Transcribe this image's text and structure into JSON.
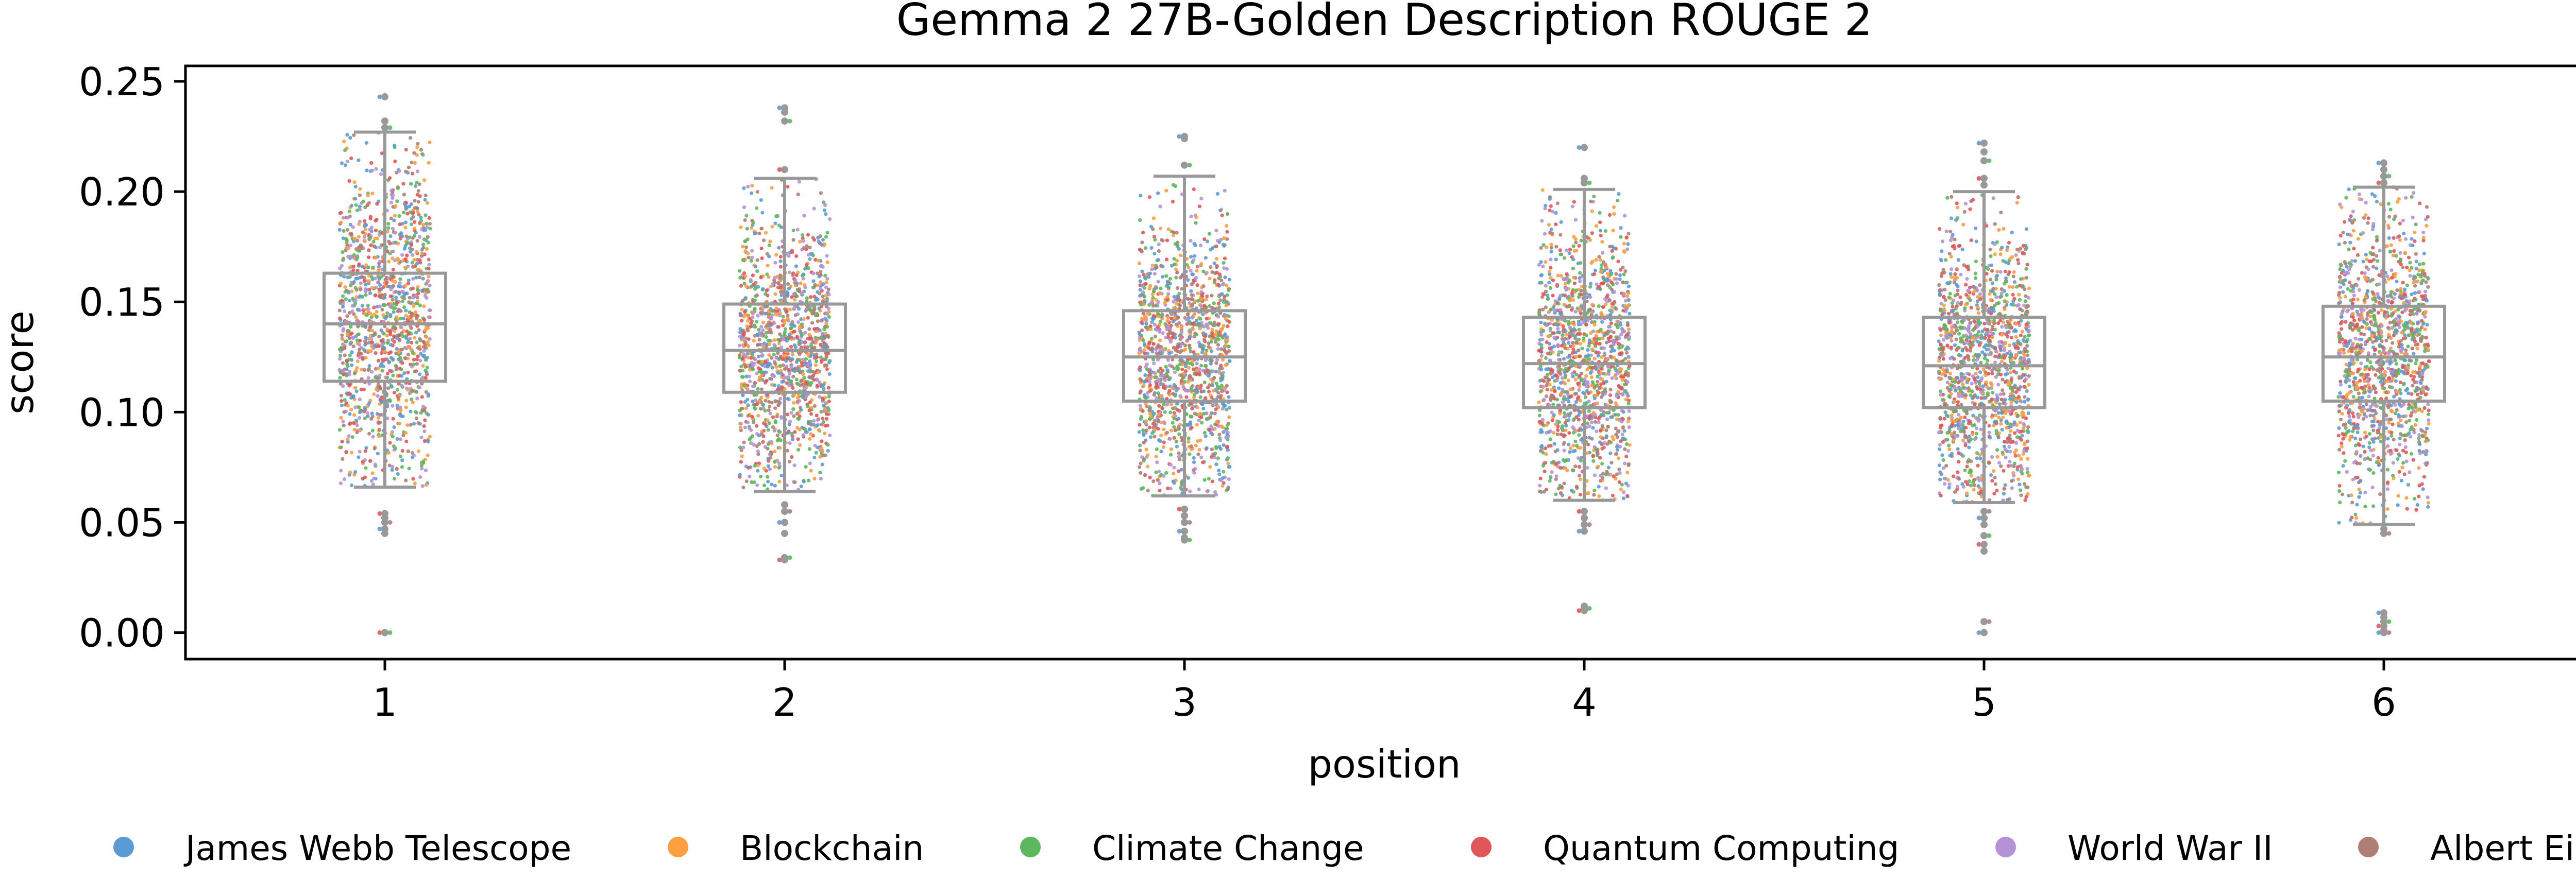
{
  "chart_data": {
    "type": "box",
    "title": "Gemma 2 27B-Golden Description ROUGE 2",
    "xlabel": "position",
    "ylabel": "score",
    "ylim": [
      -0.012,
      0.257
    ],
    "yticks": [
      {
        "value": 0.0,
        "label": "0.00"
      },
      {
        "value": 0.05,
        "label": "0.05"
      },
      {
        "value": 0.1,
        "label": "0.10"
      },
      {
        "value": 0.15,
        "label": "0.15"
      },
      {
        "value": 0.2,
        "label": "0.20"
      },
      {
        "value": 0.25,
        "label": "0.25"
      }
    ],
    "categories": [
      "1",
      "2",
      "3",
      "4",
      "5",
      "6"
    ],
    "grid": false,
    "legend_position": "bottom",
    "box_color": "#999999",
    "boxes": [
      {
        "position": "1",
        "whisker_low": 0.066,
        "q1": 0.114,
        "median": 0.14,
        "q3": 0.163,
        "whisker_high": 0.227,
        "outliers": [
          0.243,
          0.232,
          0.229,
          0.054,
          0.052,
          0.05,
          0.047,
          0.045,
          0.0,
          0.0
        ]
      },
      {
        "position": "2",
        "whisker_low": 0.064,
        "q1": 0.109,
        "median": 0.128,
        "q3": 0.149,
        "whisker_high": 0.206,
        "outliers": [
          0.238,
          0.236,
          0.232,
          0.21,
          0.058,
          0.055,
          0.05,
          0.045,
          0.034,
          0.033
        ]
      },
      {
        "position": "3",
        "whisker_low": 0.062,
        "q1": 0.105,
        "median": 0.125,
        "q3": 0.146,
        "whisker_high": 0.207,
        "outliers": [
          0.225,
          0.224,
          0.212,
          0.056,
          0.053,
          0.05,
          0.046,
          0.043,
          0.042
        ]
      },
      {
        "position": "4",
        "whisker_low": 0.06,
        "q1": 0.102,
        "median": 0.122,
        "q3": 0.143,
        "whisker_high": 0.201,
        "outliers": [
          0.22,
          0.206,
          0.204,
          0.055,
          0.052,
          0.049,
          0.046,
          0.012,
          0.011,
          0.01
        ]
      },
      {
        "position": "5",
        "whisker_low": 0.059,
        "q1": 0.102,
        "median": 0.121,
        "q3": 0.143,
        "whisker_high": 0.2,
        "outliers": [
          0.222,
          0.218,
          0.214,
          0.206,
          0.203,
          0.055,
          0.052,
          0.049,
          0.044,
          0.04,
          0.037,
          0.005,
          0.0
        ]
      },
      {
        "position": "6",
        "whisker_low": 0.049,
        "q1": 0.105,
        "median": 0.125,
        "q3": 0.148,
        "whisker_high": 0.202,
        "outliers": [
          0.213,
          0.21,
          0.207,
          0.204,
          0.047,
          0.045,
          0.009,
          0.007,
          0.005,
          0.003,
          0.001,
          0.0,
          0.0
        ]
      }
    ],
    "scatter_points_per_position": 1300,
    "series": [
      {
        "name": "James Webb Telescope",
        "color": "#5b9bd5"
      },
      {
        "name": "Blockchain",
        "color": "#ff9f40"
      },
      {
        "name": "Climate Change",
        "color": "#5cb85c"
      },
      {
        "name": "Quantum Computing",
        "color": "#e15759"
      },
      {
        "name": "World War II",
        "color": "#b392d7"
      },
      {
        "name": "Albert Einstein",
        "color": "#b07f74"
      }
    ]
  }
}
